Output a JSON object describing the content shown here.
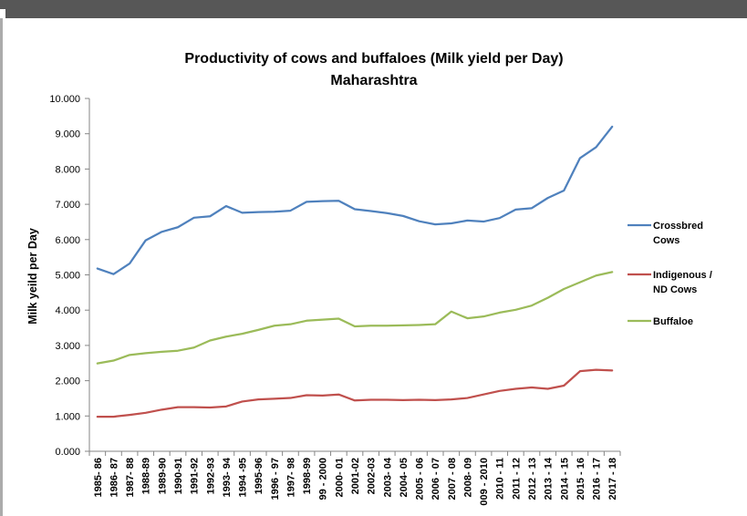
{
  "viewer": {
    "top_bar_color": "#575757"
  },
  "chart_data": {
    "type": "line",
    "title": "Productivity of cows and buffaloes (Milk yield per Day)",
    "subtitle": "Maharashtra",
    "xlabel": "",
    "ylabel": "Milk yeild per Day",
    "ylim": [
      0,
      10
    ],
    "y_ticks": [
      "0.000",
      "1.000",
      "2.000",
      "3.000",
      "4.000",
      "5.000",
      "6.000",
      "7.000",
      "8.000",
      "9.000",
      "10.000"
    ],
    "grid": false,
    "legend_position": "right",
    "categories": [
      "1985- 86",
      "1986- 87",
      "1987- 88",
      "1988-89",
      "1989-90",
      "1990-91",
      "1991-92",
      "1992-93",
      "1993- 94",
      "1994 -95",
      "1995-96",
      "1996 - 97",
      "1997- 98",
      "1998-99",
      "99 - 2000",
      "2000- 01",
      "2001-02",
      "2002-03",
      "2003- 04",
      "2004- 05",
      "2005 - 06",
      "2006 - 07",
      "2007 - 08",
      "2008- 09",
      "009 - 2010",
      "2010 - 11",
      "2011 - 12",
      "2012 - 13",
      "2013 - 14",
      "2014 - 15",
      "2015 - 16",
      "2016 - 17",
      "2017 - 18"
    ],
    "series": [
      {
        "name": "Crossbred Cows",
        "legend_lines": [
          "Crossbred",
          "Cows"
        ],
        "color": "#4F81BD",
        "values": [
          5.18,
          5.02,
          5.32,
          5.98,
          6.22,
          6.35,
          6.62,
          6.66,
          6.95,
          6.76,
          6.78,
          6.79,
          6.82,
          7.07,
          7.09,
          7.1,
          6.86,
          6.81,
          6.75,
          6.67,
          6.52,
          6.43,
          6.46,
          6.54,
          6.51,
          6.61,
          6.85,
          6.89,
          7.18,
          7.39,
          8.31,
          8.62,
          9.2
        ]
      },
      {
        "name": "Indigenous / ND Cows",
        "legend_lines": [
          "Indigenous /",
          "ND Cows"
        ],
        "color": "#C0504D",
        "values": [
          0.98,
          0.98,
          1.03,
          1.09,
          1.18,
          1.25,
          1.25,
          1.24,
          1.27,
          1.41,
          1.47,
          1.49,
          1.51,
          1.59,
          1.58,
          1.61,
          1.44,
          1.46,
          1.46,
          1.45,
          1.46,
          1.45,
          1.47,
          1.51,
          1.61,
          1.71,
          1.77,
          1.81,
          1.77,
          1.86,
          2.27,
          2.31,
          2.29
        ]
      },
      {
        "name": "Buffaloe",
        "legend_lines": [
          "Buffaloe"
        ],
        "color": "#9BBB59",
        "values": [
          2.49,
          2.57,
          2.73,
          2.78,
          2.82,
          2.85,
          2.94,
          3.14,
          3.25,
          3.33,
          3.44,
          3.56,
          3.6,
          3.7,
          3.73,
          3.76,
          3.54,
          3.56,
          3.56,
          3.57,
          3.58,
          3.6,
          3.96,
          3.77,
          3.82,
          3.93,
          4.01,
          4.13,
          4.35,
          4.6,
          4.79,
          4.98,
          5.08
        ]
      }
    ]
  }
}
